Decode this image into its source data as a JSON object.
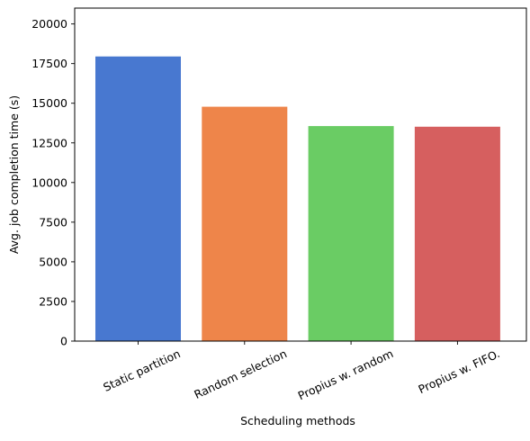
{
  "chart_data": {
    "type": "bar",
    "title": "",
    "xlabel": "Scheduling methods",
    "ylabel": "Avg. job completion time (s)",
    "categories": [
      "Static partition",
      "Random selection",
      "Propius w. random",
      "Propius w. FIFO."
    ],
    "values": [
      17950,
      14780,
      13560,
      13520
    ],
    "colors": [
      "#4878d0",
      "#ee854a",
      "#6acc64",
      "#d65f5f"
    ],
    "ylim": [
      0,
      21000
    ],
    "yticks": [
      0,
      2500,
      5000,
      7500,
      10000,
      12500,
      15000,
      17500,
      20000
    ],
    "grid": false,
    "legend": "none"
  }
}
